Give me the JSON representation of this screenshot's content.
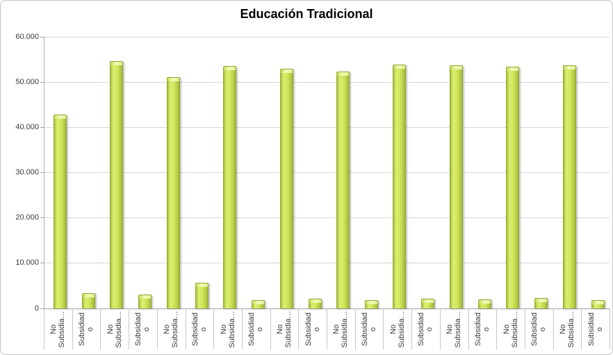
{
  "chart_data": {
    "type": "bar",
    "title": "Educación Tradicional",
    "xlabel": "",
    "ylabel": "",
    "ylim": [
      0,
      60000
    ],
    "ytick_step": 10000,
    "ytick_labels": [
      "0",
      "10.000",
      "20.000",
      "30.000",
      "40.000",
      "50.000",
      "60.000"
    ],
    "grid": true,
    "legend": "none",
    "bar_color_center": "#d9ec68",
    "bar_color_edge": "#a3bd3b",
    "bar_border_color": "#8fa833",
    "bars": [
      {
        "label_lines": [
          "No",
          "Subsidia…"
        ],
        "value": 42800
      },
      {
        "label_lines": [
          "Subsidiad",
          "o"
        ],
        "value": 3400
      },
      {
        "label_lines": [
          "No",
          "Subsidia…"
        ],
        "value": 54600
      },
      {
        "label_lines": [
          "Subsidiad",
          "o"
        ],
        "value": 3100
      },
      {
        "label_lines": [
          "No",
          "Subsidia…"
        ],
        "value": 51100
      },
      {
        "label_lines": [
          "Subsidiad",
          "o"
        ],
        "value": 5700
      },
      {
        "label_lines": [
          "No",
          "Subsidia…"
        ],
        "value": 53600
      },
      {
        "label_lines": [
          "Subsidiad",
          "o"
        ],
        "value": 1900
      },
      {
        "label_lines": [
          "No",
          "Subsidia…"
        ],
        "value": 53000
      },
      {
        "label_lines": [
          "Subsidiad",
          "o"
        ],
        "value": 2200
      },
      {
        "label_lines": [
          "No",
          "Subsidia…"
        ],
        "value": 52300
      },
      {
        "label_lines": [
          "Subsidiad",
          "o"
        ],
        "value": 1900
      },
      {
        "label_lines": [
          "No",
          "Subsidia…"
        ],
        "value": 53800
      },
      {
        "label_lines": [
          "Subsidiad",
          "o"
        ],
        "value": 2100
      },
      {
        "label_lines": [
          "No",
          "Subsidia…"
        ],
        "value": 53700
      },
      {
        "label_lines": [
          "Subsidiad",
          "o"
        ],
        "value": 2000
      },
      {
        "label_lines": [
          "No",
          "Subsidia…"
        ],
        "value": 53400
      },
      {
        "label_lines": [
          "Subsidiad",
          "o"
        ],
        "value": 2300
      },
      {
        "label_lines": [
          "No",
          "Subsidia…"
        ],
        "value": 53700
      },
      {
        "label_lines": [
          "Subsidiad",
          "o"
        ],
        "value": 1900
      }
    ]
  }
}
